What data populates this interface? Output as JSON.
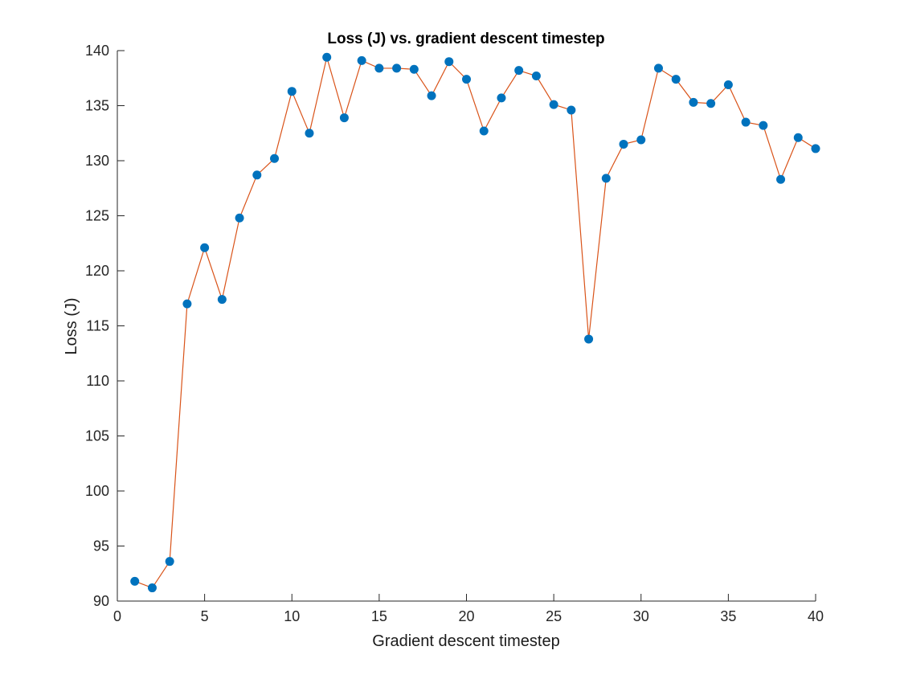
{
  "chart_data": {
    "type": "line",
    "title": "Loss (J) vs. gradient descent timestep",
    "xlabel": "Gradient descent timestep",
    "ylabel": "Loss (J)",
    "xlim": [
      0,
      40
    ],
    "ylim": [
      90,
      140
    ],
    "xticks": [
      0,
      5,
      10,
      15,
      20,
      25,
      30,
      35,
      40
    ],
    "yticks": [
      90,
      95,
      100,
      105,
      110,
      115,
      120,
      125,
      130,
      135,
      140
    ],
    "grid": false,
    "legend": "none",
    "line_color": "#d95319",
    "marker_color": "#0072bd",
    "series": [
      {
        "x": [
          1,
          2,
          3,
          4,
          5,
          6,
          7,
          8,
          9,
          10,
          11,
          12,
          13,
          14,
          15,
          16,
          17,
          18,
          19,
          20,
          21,
          22,
          23,
          24,
          25,
          26,
          27,
          28,
          29,
          30,
          31,
          32,
          33,
          34,
          35,
          36,
          37,
          38,
          39,
          40
        ],
        "values": [
          91.8,
          91.2,
          93.6,
          117.0,
          122.1,
          117.4,
          124.8,
          128.7,
          130.2,
          136.3,
          132.5,
          139.4,
          133.9,
          139.1,
          138.4,
          138.4,
          138.3,
          135.9,
          139.0,
          137.4,
          132.7,
          135.7,
          138.2,
          137.7,
          135.1,
          134.6,
          113.8,
          128.4,
          131.5,
          131.9,
          138.4,
          137.4,
          135.3,
          135.2,
          136.9,
          133.5,
          133.2,
          128.3,
          132.1,
          131.1
        ]
      }
    ]
  }
}
